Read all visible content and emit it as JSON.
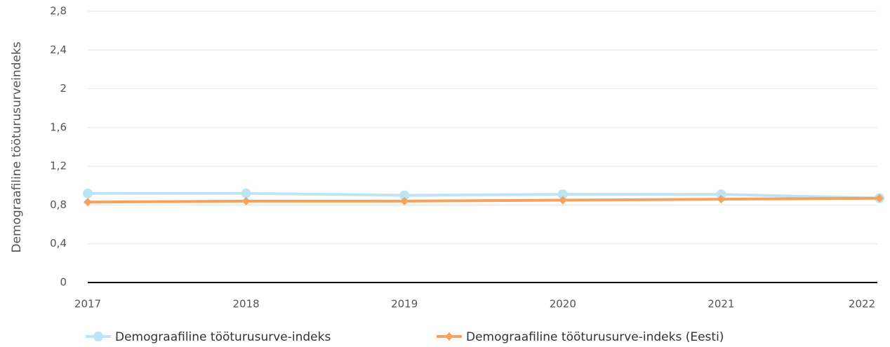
{
  "chart_data": {
    "type": "line",
    "y_label": "Demograafiline tööturusurveindeks",
    "categories": [
      "2017",
      "2018",
      "2019",
      "2020",
      "2021",
      "2022"
    ],
    "series": [
      {
        "name": "Demograafiline tööturusurve-indeks",
        "color": "#bde3f4",
        "marker": "circle",
        "values": [
          0.92,
          0.92,
          0.9,
          0.91,
          0.91,
          0.87
        ]
      },
      {
        "name": "Demograafiline tööturusurve-indeks (Eesti)",
        "color": "#f5a25d",
        "marker": "diamond",
        "values": [
          0.83,
          0.84,
          0.84,
          0.85,
          0.86,
          0.87
        ]
      }
    ],
    "ylim": [
      0,
      2.8
    ],
    "yticks": [
      0,
      {
        "value": 0.4,
        "label": "0,4"
      },
      {
        "value": 0.8,
        "label": "0,8"
      },
      {
        "value": 1.2,
        "label": "1,2"
      },
      {
        "value": 1.6,
        "label": "1,6"
      },
      2,
      {
        "value": 2.4,
        "label": "2,4"
      },
      {
        "value": 2.8,
        "label": "2,8"
      }
    ],
    "grid": true,
    "legend": "bottom"
  }
}
